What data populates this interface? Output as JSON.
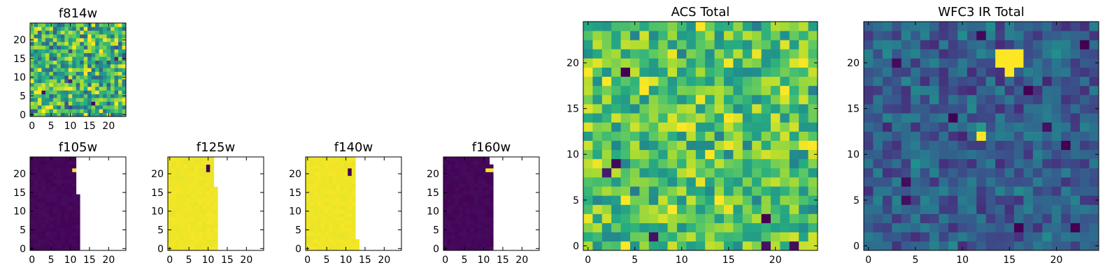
{
  "figure": {
    "background": "#ffffff",
    "colormap": "viridis"
  },
  "chart_data": [
    {
      "id": "f814w",
      "type": "heatmap",
      "title": "f814w",
      "grid": [
        25,
        25
      ],
      "xlim": [
        0,
        24
      ],
      "ylim": [
        0,
        24
      ],
      "xticks": [
        "0",
        "5",
        "10",
        "15",
        "20"
      ],
      "yticks": [
        "0",
        "5",
        "10",
        "15",
        "20"
      ],
      "fill": {
        "style": "noise",
        "base": 0.65,
        "spread": 0.45,
        "seed": 11
      },
      "cells": [
        {
          "row": 3,
          "col": 16,
          "value": 0.02
        },
        {
          "row": 6,
          "col": 3,
          "value": 0.05
        },
        {
          "row": 9,
          "col": 10,
          "value": 0.1
        },
        {
          "row": 15,
          "col": 22,
          "value": 0.12
        }
      ]
    },
    {
      "id": "f105w",
      "type": "heatmap",
      "title": "f105w",
      "grid": [
        25,
        25
      ],
      "xlim": [
        0,
        24
      ],
      "ylim": [
        0,
        24
      ],
      "xticks": [
        "0",
        "5",
        "10",
        "15",
        "20"
      ],
      "yticks": [
        "0",
        "5",
        "10",
        "15",
        "20"
      ],
      "fill": {
        "style": "uniform",
        "base": 0.02,
        "spread": 0.03,
        "seed": 21
      },
      "mask_from": [
        13,
        13,
        13,
        13,
        13,
        13,
        13,
        13,
        13,
        13,
        13,
        13,
        13,
        13,
        13,
        12,
        12,
        12,
        12,
        12,
        12,
        12,
        12,
        12,
        12
      ],
      "cells": [
        {
          "row": 21,
          "col": 11,
          "value": 1.0
        },
        {
          "row": 21,
          "col": 12,
          "value": 1.0
        }
      ]
    },
    {
      "id": "f125w",
      "type": "heatmap",
      "title": "f125w",
      "grid": [
        25,
        25
      ],
      "xlim": [
        0,
        24
      ],
      "ylim": [
        0,
        24
      ],
      "xticks": [
        "0",
        "5",
        "10",
        "15",
        "20"
      ],
      "yticks": [
        "0",
        "5",
        "10",
        "15",
        "20"
      ],
      "fill": {
        "style": "uniform",
        "base": 0.98,
        "spread": 0.02,
        "seed": 31
      },
      "mask_from": [
        13,
        13,
        13,
        13,
        13,
        13,
        13,
        13,
        13,
        13,
        13,
        13,
        13,
        13,
        13,
        13,
        13,
        12,
        12,
        12,
        12,
        12,
        12,
        12,
        12
      ],
      "cells": [
        {
          "row": 21,
          "col": 10,
          "value": 0.0
        },
        {
          "row": 22,
          "col": 10,
          "value": 0.0
        }
      ]
    },
    {
      "id": "f140w",
      "type": "heatmap",
      "title": "f140w",
      "grid": [
        25,
        25
      ],
      "xlim": [
        0,
        24
      ],
      "ylim": [
        0,
        24
      ],
      "xticks": [
        "0",
        "5",
        "10",
        "15",
        "20"
      ],
      "yticks": [
        "0",
        "5",
        "10",
        "15",
        "20"
      ],
      "fill": {
        "style": "uniform",
        "base": 0.98,
        "spread": 0.02,
        "seed": 41
      },
      "mask_from": [
        14,
        14,
        14,
        13,
        13,
        13,
        13,
        13,
        13,
        13,
        13,
        13,
        13,
        13,
        13,
        13,
        13,
        13,
        13,
        13,
        13,
        13,
        13,
        13,
        13
      ],
      "cells": [
        {
          "row": 20,
          "col": 11,
          "value": 0.0
        },
        {
          "row": 21,
          "col": 11,
          "value": 0.0
        }
      ]
    },
    {
      "id": "f160w",
      "type": "heatmap",
      "title": "f160w",
      "grid": [
        25,
        25
      ],
      "xlim": [
        0,
        24
      ],
      "ylim": [
        0,
        24
      ],
      "xticks": [
        "0",
        "5",
        "10",
        "15",
        "20"
      ],
      "yticks": [
        "0",
        "5",
        "10",
        "15",
        "20"
      ],
      "fill": {
        "style": "uniform",
        "base": 0.02,
        "spread": 0.03,
        "seed": 51
      },
      "mask_from": [
        13,
        13,
        13,
        13,
        13,
        13,
        13,
        13,
        13,
        13,
        13,
        13,
        13,
        13,
        13,
        13,
        13,
        13,
        13,
        13,
        13,
        13,
        13,
        12,
        12
      ],
      "cells": [
        {
          "row": 21,
          "col": 11,
          "value": 1.0
        },
        {
          "row": 21,
          "col": 12,
          "value": 1.0
        },
        {
          "row": 0,
          "col": 12,
          "value": 0.05
        }
      ]
    },
    {
      "id": "acs-total",
      "type": "heatmap",
      "title": "ACS Total",
      "grid": [
        25,
        25
      ],
      "xlim": [
        0,
        24
      ],
      "ylim": [
        0,
        24
      ],
      "xticks": [
        "0",
        "5",
        "10",
        "15",
        "20"
      ],
      "yticks": [
        "0",
        "5",
        "10",
        "15",
        "20"
      ],
      "fill": {
        "style": "noise",
        "base": 0.72,
        "spread": 0.32,
        "seed": 61
      },
      "cells": [
        {
          "row": 19,
          "col": 4,
          "value": 0.0
        },
        {
          "row": 9,
          "col": 3,
          "value": 0.02
        },
        {
          "row": 3,
          "col": 19,
          "value": 0.0
        },
        {
          "row": 1,
          "col": 7,
          "value": 0.05
        },
        {
          "row": 0,
          "col": 22,
          "value": 0.03
        },
        {
          "row": 0,
          "col": 19,
          "value": 0.05
        },
        {
          "row": 8,
          "col": 2,
          "value": 0.08
        },
        {
          "row": 13,
          "col": 10,
          "value": 1.0
        },
        {
          "row": 5,
          "col": 14,
          "value": 1.0
        },
        {
          "row": 24,
          "col": 12,
          "value": 1.0
        },
        {
          "row": 17,
          "col": 21,
          "value": 1.0
        }
      ]
    },
    {
      "id": "wfc3-ir-total",
      "type": "heatmap",
      "title": "WFC3 IR Total",
      "grid": [
        25,
        25
      ],
      "xlim": [
        0,
        24
      ],
      "ylim": [
        0,
        24
      ],
      "xticks": [
        "0",
        "5",
        "10",
        "15",
        "20"
      ],
      "yticks": [
        "0",
        "5",
        "10",
        "15",
        "20"
      ],
      "fill": {
        "style": "noise",
        "base": 0.3,
        "spread": 0.2,
        "seed": 71
      },
      "cells": [
        {
          "row": 21,
          "col": 14,
          "value": 1.0
        },
        {
          "row": 21,
          "col": 15,
          "value": 1.0
        },
        {
          "row": 21,
          "col": 16,
          "value": 1.0
        },
        {
          "row": 20,
          "col": 14,
          "value": 1.0
        },
        {
          "row": 20,
          "col": 15,
          "value": 1.0
        },
        {
          "row": 20,
          "col": 16,
          "value": 1.0
        },
        {
          "row": 19,
          "col": 15,
          "value": 1.0
        },
        {
          "row": 12,
          "col": 12,
          "value": 1.0
        },
        {
          "row": 13,
          "col": 12,
          "value": 0.55
        },
        {
          "row": 14,
          "col": 9,
          "value": 0.0
        },
        {
          "row": 11,
          "col": 21,
          "value": 0.0
        },
        {
          "row": 2,
          "col": 16,
          "value": 0.0
        },
        {
          "row": 2,
          "col": 22,
          "value": 0.0
        },
        {
          "row": 17,
          "col": 17,
          "value": 0.0
        },
        {
          "row": 22,
          "col": 23,
          "value": 0.0
        },
        {
          "row": 23,
          "col": 12,
          "value": 0.02
        },
        {
          "row": 20,
          "col": 3,
          "value": 0.03
        },
        {
          "row": 7,
          "col": 4,
          "value": 0.03
        },
        {
          "row": 13,
          "col": 19,
          "value": 0.05
        },
        {
          "row": 5,
          "col": 4,
          "value": 0.04
        }
      ]
    }
  ]
}
